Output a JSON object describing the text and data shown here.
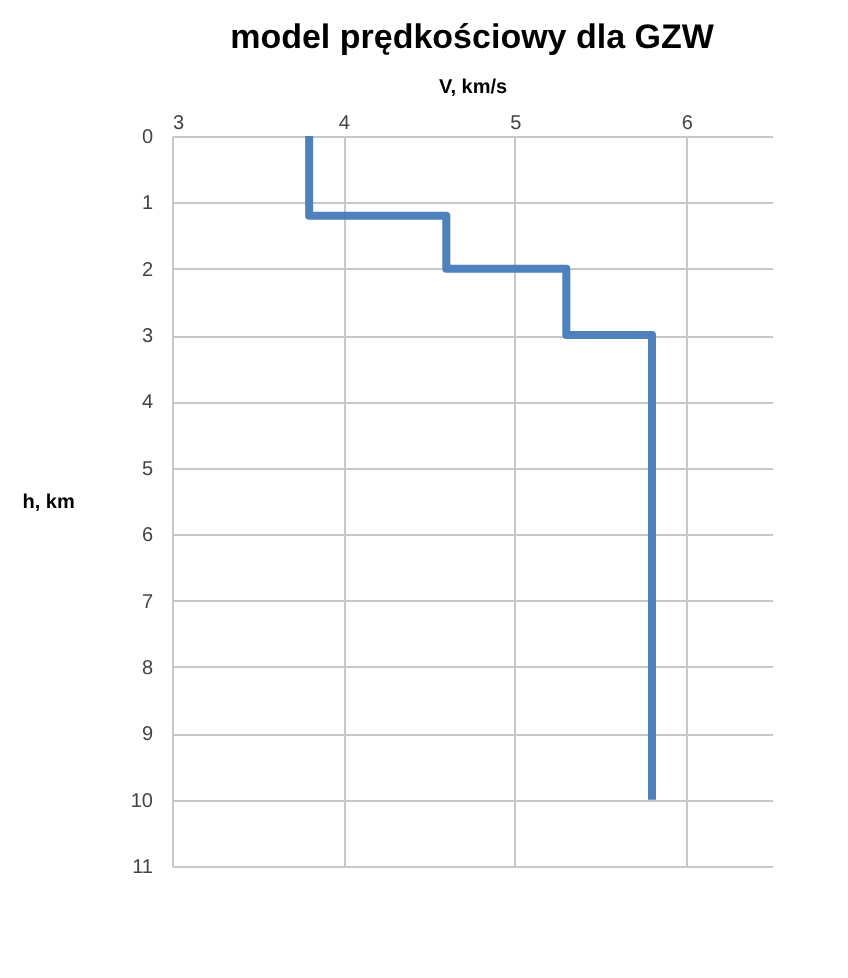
{
  "chart_data": {
    "type": "line",
    "title": "model prędkościowy dla GZW",
    "xlabel": "V, km/s",
    "ylabel": "h, km",
    "series": [
      {
        "x": [
          3.8,
          3.8,
          4.6,
          4.6,
          5.3,
          5.3,
          5.8,
          5.8
        ],
        "values": [
          0,
          1.2,
          1.2,
          2,
          2,
          3,
          3,
          10
        ],
        "color": "#4f81bd"
      }
    ],
    "xlim": [
      3,
      6.5
    ],
    "xticks": [
      3,
      4,
      5,
      6
    ],
    "ylim": [
      11,
      0
    ],
    "yticks": [
      0,
      1,
      2,
      3,
      4,
      5,
      6,
      7,
      8,
      9,
      10,
      11
    ],
    "grid": true,
    "marker": "none",
    "line_style": "solid"
  }
}
